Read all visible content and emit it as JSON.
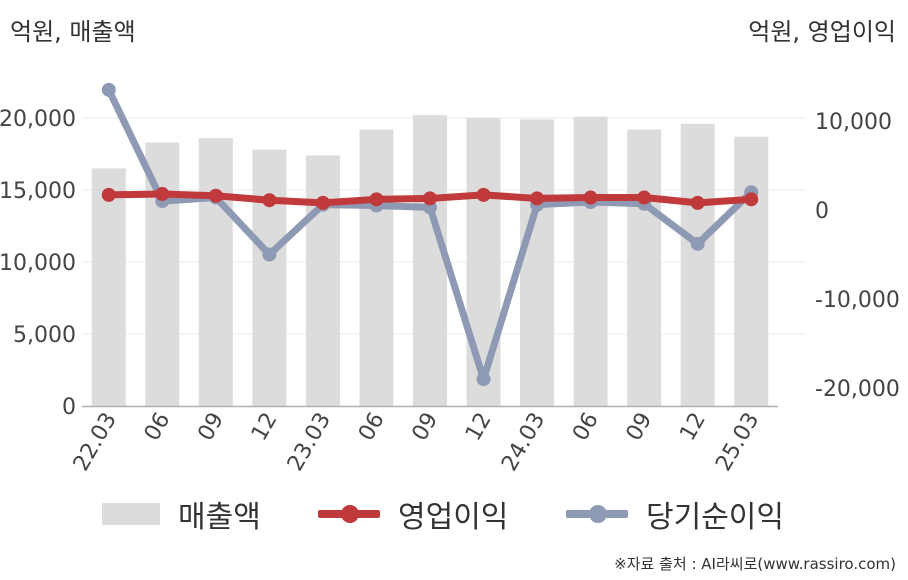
{
  "header": {
    "left_unit": "억원, 매출액",
    "right_unit": "억원, 영업이익"
  },
  "chart_data": {
    "type": "bar",
    "categories": [
      "22.03",
      "06",
      "09",
      "12",
      "23.03",
      "06",
      "09",
      "12",
      "24.03",
      "06",
      "09",
      "12",
      "25.03"
    ],
    "series": [
      {
        "name": "매출액",
        "type": "bar",
        "axis": "left",
        "color": "#dcdcdc",
        "values": [
          16500,
          18300,
          18600,
          17800,
          17400,
          19200,
          20200,
          20000,
          19900,
          20100,
          19200,
          19600,
          18700
        ]
      },
      {
        "name": "영업이익",
        "type": "line",
        "axis": "right",
        "color": "#c0393b",
        "values": [
          1700,
          1800,
          1600,
          1100,
          800,
          1200,
          1300,
          1700,
          1300,
          1400,
          1400,
          800,
          1200
        ]
      },
      {
        "name": "당기순이익",
        "type": "line",
        "axis": "right",
        "color": "#8e9ab4",
        "values": [
          13500,
          1000,
          1400,
          -5000,
          600,
          500,
          300,
          -19000,
          600,
          900,
          700,
          -3800,
          2000
        ]
      }
    ],
    "y_left": {
      "ylim": [
        0,
        20000
      ],
      "ticks": [
        "0",
        "5,000",
        "10,000",
        "15,000",
        "20,000"
      ],
      "tick_values": [
        0,
        5000,
        10000,
        15000,
        20000
      ]
    },
    "y_right": {
      "ylim": [
        -20000,
        10000
      ],
      "ticks": [
        "-20,000",
        "-10,000",
        "0",
        "10,000"
      ],
      "tick_values": [
        -20000,
        -10000,
        0,
        10000
      ]
    },
    "grid": true,
    "legend": "bottom"
  },
  "legend": {
    "items": [
      {
        "label": "매출액",
        "kind": "bar",
        "color": "#dcdcdc"
      },
      {
        "label": "영업이익",
        "kind": "line",
        "color": "#c0393b"
      },
      {
        "label": "당기순이익",
        "kind": "line",
        "color": "#8e9ab4"
      }
    ]
  },
  "footer": {
    "source": "※자료 출처 : AI라씨로(www.rassiro.com)"
  }
}
